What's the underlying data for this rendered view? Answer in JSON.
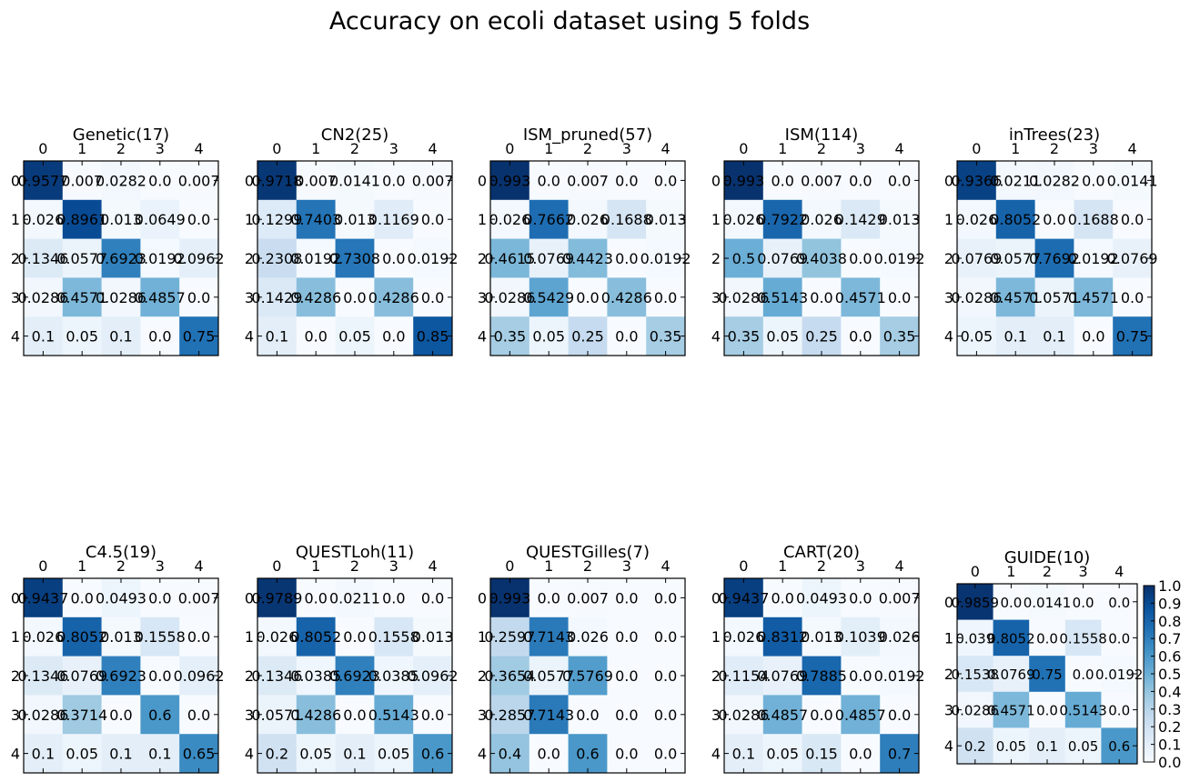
{
  "title": "Accuracy on ecoli dataset using 5 folds",
  "colors": {
    "low": "#f7fbff",
    "high": "#08306b",
    "frame": "#000000",
    "text": "#000000"
  },
  "colorbar": {
    "ticks": [
      "0.0",
      "0.1",
      "0.2",
      "0.3",
      "0.4",
      "0.5",
      "0.6",
      "0.7",
      "0.8",
      "0.9",
      "1.0"
    ]
  },
  "chart_data": [
    {
      "type": "heatmap",
      "title": "Genetic(17)",
      "xticks": [
        "0",
        "1",
        "2",
        "3",
        "4"
      ],
      "yticks": [
        "0",
        "1",
        "2",
        "3",
        "4"
      ],
      "values": [
        [
          0.9577,
          0.007,
          0.0282,
          0.0,
          0.007
        ],
        [
          0.026,
          0.8961,
          0.013,
          0.0649,
          0.0
        ],
        [
          0.1346,
          0.0577,
          0.6923,
          0.0192,
          0.0962
        ],
        [
          0.0286,
          0.4571,
          0.0286,
          0.4857,
          0.0
        ],
        [
          0.1,
          0.05,
          0.1,
          0.0,
          0.75
        ]
      ],
      "labels": [
        [
          "0.9577",
          "0.007",
          "0.0282",
          "0.0",
          "0.007"
        ],
        [
          "0.026",
          "0.8961",
          "0.013",
          "0.0649",
          "0.0"
        ],
        [
          "0.1346",
          "0.0577",
          "0.6923",
          "0.0192",
          "0.0962"
        ],
        [
          "0.0286",
          "0.4571",
          "0.0286",
          "0.4857",
          "0.0"
        ],
        [
          "0.1",
          "0.05",
          "0.1",
          "0.0",
          "0.75"
        ]
      ]
    },
    {
      "type": "heatmap",
      "title": "CN2(25)",
      "xticks": [
        "0",
        "1",
        "2",
        "3",
        "4"
      ],
      "yticks": [
        "0",
        "1",
        "2",
        "3",
        "4"
      ],
      "values": [
        [
          0.9718,
          0.007,
          0.0141,
          0.0,
          0.007
        ],
        [
          0.1299,
          0.7403,
          0.013,
          0.1169,
          0.0
        ],
        [
          0.2308,
          0.0192,
          0.7308,
          0.0,
          0.0192
        ],
        [
          0.1429,
          0.4286,
          0.0,
          0.4286,
          0.0
        ],
        [
          0.1,
          0.0,
          0.05,
          0.0,
          0.85
        ]
      ],
      "labels": [
        [
          "0.9718",
          "0.007",
          "0.0141",
          "0.0",
          "0.007"
        ],
        [
          "0.1299",
          "0.7403",
          "0.013",
          "0.1169",
          "0.0"
        ],
        [
          "0.2308",
          "0.0192",
          "0.7308",
          "0.0",
          "0.0192"
        ],
        [
          "0.1429",
          "0.4286",
          "0.0",
          "0.4286",
          "0.0"
        ],
        [
          "0.1",
          "0.0",
          "0.05",
          "0.0",
          "0.85"
        ]
      ]
    },
    {
      "type": "heatmap",
      "title": "ISM_pruned(57)",
      "xticks": [
        "0",
        "1",
        "2",
        "3",
        "4"
      ],
      "yticks": [
        "0",
        "1",
        "2",
        "3",
        "4"
      ],
      "values": [
        [
          0.993,
          0.0,
          0.007,
          0.0,
          0.0
        ],
        [
          0.026,
          0.7662,
          0.026,
          0.1688,
          0.013
        ],
        [
          0.4615,
          0.0769,
          0.4423,
          0.0,
          0.0192
        ],
        [
          0.0286,
          0.5429,
          0.0,
          0.4286,
          0.0
        ],
        [
          0.35,
          0.05,
          0.25,
          0.0,
          0.35
        ]
      ],
      "labels": [
        [
          "0.993",
          "0.0",
          "0.007",
          "0.0",
          "0.0"
        ],
        [
          "0.026",
          "0.7662",
          "0.026",
          "0.1688",
          "0.013"
        ],
        [
          "0.4615",
          "0.0769",
          "0.4423",
          "0.0",
          "0.0192"
        ],
        [
          "0.0286",
          "0.5429",
          "0.0",
          "0.4286",
          "0.0"
        ],
        [
          "0.35",
          "0.05",
          "0.25",
          "0.0",
          "0.35"
        ]
      ]
    },
    {
      "type": "heatmap",
      "title": "ISM(114)",
      "xticks": [
        "0",
        "1",
        "2",
        "3",
        "4"
      ],
      "yticks": [
        "0",
        "1",
        "2",
        "3",
        "4"
      ],
      "values": [
        [
          0.993,
          0.0,
          0.007,
          0.0,
          0.0
        ],
        [
          0.026,
          0.7922,
          0.026,
          0.1429,
          0.013
        ],
        [
          0.5,
          0.0769,
          0.4038,
          0.0,
          0.0192
        ],
        [
          0.0286,
          0.5143,
          0.0,
          0.4571,
          0.0
        ],
        [
          0.35,
          0.05,
          0.25,
          0.0,
          0.35
        ]
      ],
      "labels": [
        [
          "0.993",
          "0.0",
          "0.007",
          "0.0",
          "0.0"
        ],
        [
          "0.026",
          "0.7922",
          "0.026",
          "0.1429",
          "0.013"
        ],
        [
          "0.5",
          "0.0769",
          "0.4038",
          "0.0",
          "0.0192"
        ],
        [
          "0.0286",
          "0.5143",
          "0.0",
          "0.4571",
          "0.0"
        ],
        [
          "0.35",
          "0.05",
          "0.25",
          "0.0",
          "0.35"
        ]
      ]
    },
    {
      "type": "heatmap",
      "title": "inTrees(23)",
      "xticks": [
        "0",
        "1",
        "2",
        "3",
        "4"
      ],
      "yticks": [
        "0",
        "1",
        "2",
        "3",
        "4"
      ],
      "values": [
        [
          0.9366,
          0.0211,
          0.0282,
          0.0,
          0.0141
        ],
        [
          0.026,
          0.8052,
          0.0,
          0.1688,
          0.0
        ],
        [
          0.0769,
          0.0577,
          0.7692,
          0.0192,
          0.0769
        ],
        [
          0.0286,
          0.4571,
          0.0571,
          0.4571,
          0.0
        ],
        [
          0.05,
          0.1,
          0.1,
          0.0,
          0.75
        ]
      ],
      "labels": [
        [
          "0.9366",
          "0.0211",
          "0.0282",
          "0.0",
          "0.0141"
        ],
        [
          "0.026",
          "0.8052",
          "0.0",
          "0.1688",
          "0.0"
        ],
        [
          "0.0769",
          "0.0577",
          "0.7692",
          "0.0192",
          "0.0769"
        ],
        [
          "0.0286",
          "0.4571",
          "0.0571",
          "0.4571",
          "0.0"
        ],
        [
          "0.05",
          "0.1",
          "0.1",
          "0.0",
          "0.75"
        ]
      ]
    },
    {
      "type": "heatmap",
      "title": "C4.5(19)",
      "xticks": [
        "0",
        "1",
        "2",
        "3",
        "4"
      ],
      "yticks": [
        "0",
        "1",
        "2",
        "3",
        "4"
      ],
      "values": [
        [
          0.9437,
          0.0,
          0.0493,
          0.0,
          0.007
        ],
        [
          0.026,
          0.8052,
          0.013,
          0.1558,
          0.0
        ],
        [
          0.1346,
          0.0769,
          0.6923,
          0.0,
          0.0962
        ],
        [
          0.0286,
          0.3714,
          0.0,
          0.6,
          0.0
        ],
        [
          0.1,
          0.05,
          0.1,
          0.1,
          0.65
        ]
      ],
      "labels": [
        [
          "0.9437",
          "0.0",
          "0.0493",
          "0.0",
          "0.007"
        ],
        [
          "0.026",
          "0.8052",
          "0.013",
          "0.1558",
          "0.0"
        ],
        [
          "0.1346",
          "0.0769",
          "0.6923",
          "0.0",
          "0.0962"
        ],
        [
          "0.0286",
          "0.3714",
          "0.0",
          "0.6",
          "0.0"
        ],
        [
          "0.1",
          "0.05",
          "0.1",
          "0.1",
          "0.65"
        ]
      ]
    },
    {
      "type": "heatmap",
      "title": "QUESTLoh(11)",
      "xticks": [
        "0",
        "1",
        "2",
        "3",
        "4"
      ],
      "yticks": [
        "0",
        "1",
        "2",
        "3",
        "4"
      ],
      "values": [
        [
          0.9789,
          0.0,
          0.0211,
          0.0,
          0.0
        ],
        [
          0.026,
          0.8052,
          0.0,
          0.1558,
          0.013
        ],
        [
          0.1346,
          0.0385,
          0.6923,
          0.0385,
          0.0962
        ],
        [
          0.0571,
          0.4286,
          0.0,
          0.5143,
          0.0
        ],
        [
          0.2,
          0.05,
          0.1,
          0.05,
          0.6
        ]
      ],
      "labels": [
        [
          "0.9789",
          "0.0",
          "0.0211",
          "0.0",
          "0.0"
        ],
        [
          "0.026",
          "0.8052",
          "0.0",
          "0.1558",
          "0.013"
        ],
        [
          "0.1346",
          "0.0385",
          "0.6923",
          "0.0385",
          "0.0962"
        ],
        [
          "0.0571",
          "0.4286",
          "0.0",
          "0.5143",
          "0.0"
        ],
        [
          "0.2",
          "0.05",
          "0.1",
          "0.05",
          "0.6"
        ]
      ]
    },
    {
      "type": "heatmap",
      "title": "QUESTGilles(7)",
      "xticks": [
        "0",
        "1",
        "2",
        "3",
        "4"
      ],
      "yticks": [
        "0",
        "1",
        "2",
        "3",
        "4"
      ],
      "values": [
        [
          0.993,
          0.0,
          0.007,
          0.0,
          0.0
        ],
        [
          0.2597,
          0.7143,
          0.026,
          0.0,
          0.0
        ],
        [
          0.3654,
          0.0577,
          0.5769,
          0.0,
          0.0
        ],
        [
          0.2857,
          0.7143,
          0.0,
          0.0,
          0.0
        ],
        [
          0.4,
          0.0,
          0.6,
          0.0,
          0.0
        ]
      ],
      "labels": [
        [
          "0.993",
          "0.0",
          "0.007",
          "0.0",
          "0.0"
        ],
        [
          "0.2597",
          "0.7143",
          "0.026",
          "0.0",
          "0.0"
        ],
        [
          "0.3654",
          "0.0577",
          "0.5769",
          "0.0",
          "0.0"
        ],
        [
          "0.2857",
          "0.7143",
          "0.0",
          "0.0",
          "0.0"
        ],
        [
          "0.4",
          "0.0",
          "0.6",
          "0.0",
          "0.0"
        ]
      ]
    },
    {
      "type": "heatmap",
      "title": "CART(20)",
      "xticks": [
        "0",
        "1",
        "2",
        "3",
        "4"
      ],
      "yticks": [
        "0",
        "1",
        "2",
        "3",
        "4"
      ],
      "values": [
        [
          0.9437,
          0.0,
          0.0493,
          0.0,
          0.007
        ],
        [
          0.026,
          0.8312,
          0.013,
          0.1039,
          0.026
        ],
        [
          0.1154,
          0.0769,
          0.7885,
          0.0,
          0.0192
        ],
        [
          0.0286,
          0.4857,
          0.0,
          0.4857,
          0.0
        ],
        [
          0.1,
          0.05,
          0.15,
          0.0,
          0.7
        ]
      ],
      "labels": [
        [
          "0.9437",
          "0.0",
          "0.0493",
          "0.0",
          "0.007"
        ],
        [
          "0.026",
          "0.8312",
          "0.013",
          "0.1039",
          "0.026"
        ],
        [
          "0.1154",
          "0.0769",
          "0.7885",
          "0.0",
          "0.0192"
        ],
        [
          "0.0286",
          "0.4857",
          "0.0",
          "0.4857",
          "0.0"
        ],
        [
          "0.1",
          "0.05",
          "0.15",
          "0.0",
          "0.7"
        ]
      ]
    },
    {
      "type": "heatmap",
      "title": "GUIDE(10)",
      "xticks": [
        "0",
        "1",
        "2",
        "3",
        "4"
      ],
      "yticks": [
        "0",
        "1",
        "2",
        "3",
        "4"
      ],
      "values": [
        [
          0.9859,
          0.0,
          0.0141,
          0.0,
          0.0
        ],
        [
          0.039,
          0.8052,
          0.0,
          0.1558,
          0.0
        ],
        [
          0.1538,
          0.0769,
          0.75,
          0.0,
          0.0192
        ],
        [
          0.0286,
          0.4571,
          0.0,
          0.5143,
          0.0
        ],
        [
          0.2,
          0.05,
          0.1,
          0.05,
          0.6
        ]
      ],
      "labels": [
        [
          "0.9859",
          "0.0",
          "0.0141",
          "0.0",
          "0.0"
        ],
        [
          "0.039",
          "0.8052",
          "0.0",
          "0.1558",
          "0.0"
        ],
        [
          "0.1538",
          "0.0769",
          "0.75",
          "0.0",
          "0.0192"
        ],
        [
          "0.0286",
          "0.4571",
          "0.0",
          "0.5143",
          "0.0"
        ],
        [
          "0.2",
          "0.05",
          "0.1",
          "0.05",
          "0.6"
        ]
      ]
    }
  ]
}
